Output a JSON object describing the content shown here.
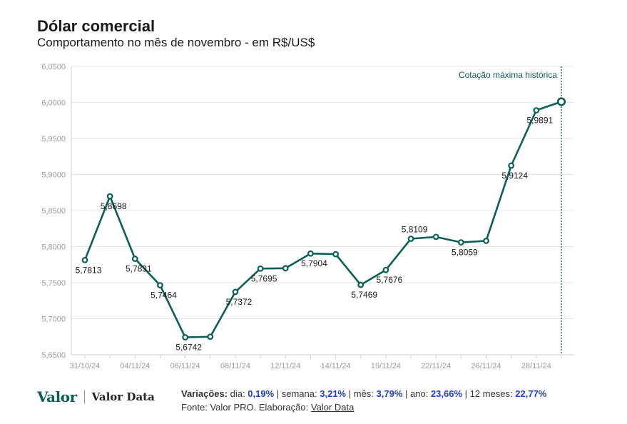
{
  "header": {
    "title": "Dólar comercial",
    "subtitle": "Comportamento no mês de novembro - em R$/US$"
  },
  "chart_data": {
    "type": "line",
    "title": "Dólar comercial",
    "subtitle": "Comportamento no mês de novembro - em R$/US$",
    "ylim": [
      5.65,
      6.05
    ],
    "y_ticks": [
      "5,6500",
      "5,7000",
      "5,7500",
      "5,8000",
      "5,8500",
      "5,9000",
      "5,9500",
      "6,0000",
      "6,0500"
    ],
    "y_tick_values": [
      5.65,
      5.7,
      5.75,
      5.8,
      5.85,
      5.9,
      5.95,
      6.0,
      6.05
    ],
    "x_tick_labels": [
      "31/10/24",
      "04/11/24",
      "06/11/24",
      "08/11/24",
      "12/11/24",
      "14/11/24",
      "19/11/24",
      "22/11/24",
      "26/11/24",
      "28/11/24"
    ],
    "x_tick_indices": [
      0,
      2,
      4,
      6,
      8,
      10,
      12,
      14,
      16,
      18
    ],
    "values": [
      5.7813,
      5.8698,
      5.7831,
      5.7464,
      5.6742,
      5.675,
      5.7372,
      5.7695,
      5.77,
      5.7904,
      5.7895,
      5.7469,
      5.7676,
      5.8109,
      5.8135,
      5.8059,
      5.808,
      5.9124,
      5.9891,
      6.001
    ],
    "labels": [
      "5,7813",
      "5,8698",
      "5,7831",
      "5,7464",
      "5,6742",
      "",
      "5,7372",
      "5,7695",
      "",
      "5,7904",
      "",
      "5,7469",
      "5,7676",
      "5,8109",
      "",
      "5,8059",
      "",
      "5,9124",
      "5,9891",
      ""
    ],
    "label_positions": [
      "below",
      "below",
      "below",
      "below",
      "below",
      "",
      "below",
      "below",
      "",
      "below",
      "",
      "below",
      "below",
      "above",
      "",
      "below",
      "",
      "below",
      "below",
      ""
    ],
    "grid": true,
    "annotation": "Cotação máxima histórica",
    "colors": {
      "line": "#0b5f57",
      "grid": "#e6e6e6",
      "annotation": "#0b5f57"
    }
  },
  "footer": {
    "logo_main": "Valor",
    "logo_secondary": "Valor Data",
    "variacoes_label": "Variações:",
    "dia_label": "dia:",
    "dia_value": "0,19%",
    "semana_label": "semana:",
    "semana_value": "3,21%",
    "mes_label": "mês:",
    "mes_value": "3,79%",
    "ano_label": "ano:",
    "ano_value": "23,66%",
    "meses_label": "12 meses:",
    "meses_value": "22,77%",
    "fonte_text": "Fonte: Valor PRO. Elaboração:",
    "fonte_link": "Valor Data"
  }
}
